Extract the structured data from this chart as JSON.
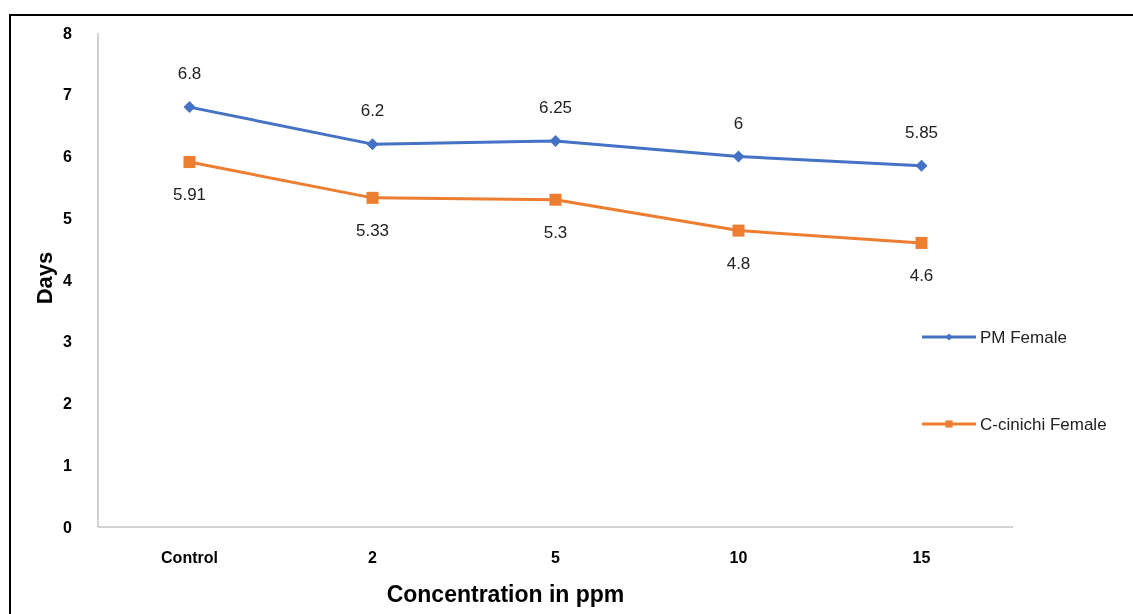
{
  "chart_data": {
    "type": "line",
    "xlabel": "Concentration in ppm",
    "ylabel": "Days",
    "categories": [
      "Control",
      "2",
      "5",
      "10",
      "15"
    ],
    "series": [
      {
        "name": "PM Female",
        "color": "#4472c4",
        "marker": "diamond",
        "values": [
          6.8,
          6.2,
          6.25,
          6,
          5.85
        ]
      },
      {
        "name": "C-cinichi Female",
        "color": "#ed7d31",
        "marker": "square",
        "values": [
          5.91,
          5.33,
          5.3,
          4.8,
          4.6
        ]
      }
    ],
    "ylim": [
      0,
      8
    ],
    "yticks": [
      0,
      1,
      2,
      3,
      4,
      5,
      6,
      7,
      8
    ],
    "grid": false,
    "legend": "right",
    "data_labels": true
  }
}
